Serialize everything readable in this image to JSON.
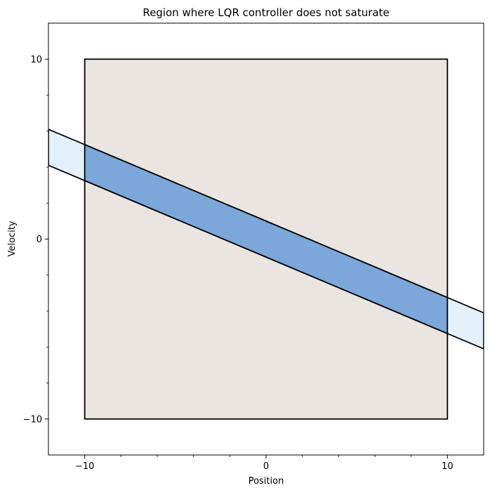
{
  "chart_data": {
    "type": "area",
    "title": "Region where LQR controller does not saturate",
    "xlabel": "Position",
    "ylabel": "Velocity",
    "xlim": [
      -12,
      12
    ],
    "ylim": [
      -12,
      12
    ],
    "xticks": [
      -10,
      0,
      10
    ],
    "yticks": [
      -10,
      0,
      10
    ],
    "xtick_labels": [
      "−10",
      "0",
      "10"
    ],
    "ytick_labels": [
      "−10",
      "0",
      "10"
    ],
    "grid": false,
    "series": [
      {
        "role": "state-box",
        "color": "#ebe5e1",
        "polygon": [
          [
            -10,
            -10
          ],
          [
            10,
            -10
          ],
          [
            10,
            10
          ],
          [
            -10,
            10
          ]
        ]
      },
      {
        "role": "non-saturation-band",
        "color": "#e3f1fc",
        "polygon": [
          [
            -12,
            6.1
          ],
          [
            12,
            -4.1
          ],
          [
            12,
            -6.1
          ],
          [
            -12,
            4.1
          ]
        ]
      },
      {
        "role": "band-inside-box",
        "color": "#7ba7da",
        "polygon": [
          [
            -10,
            5.25
          ],
          [
            10,
            -3.25
          ],
          [
            10,
            -5.25
          ],
          [
            -10,
            3.25
          ]
        ]
      }
    ]
  }
}
